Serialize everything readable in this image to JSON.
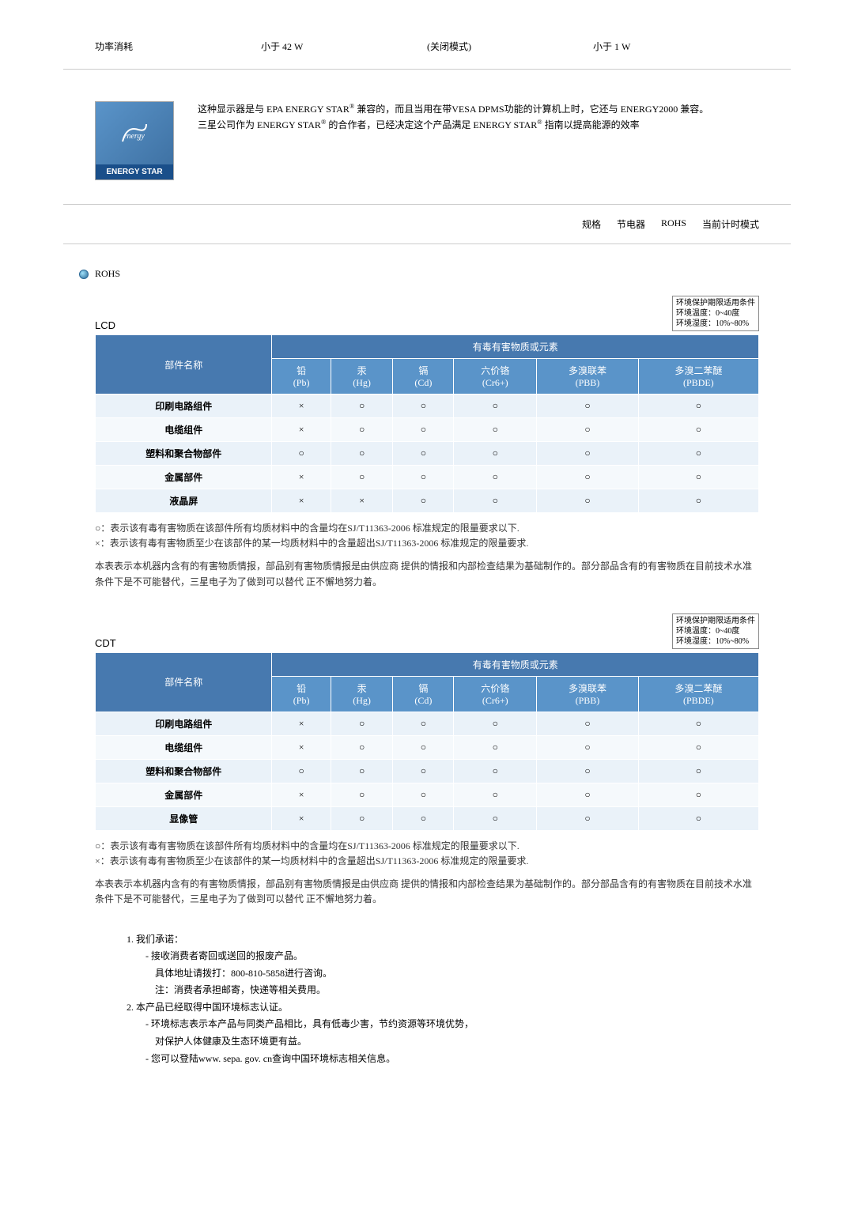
{
  "power": {
    "label": "功率消耗",
    "val1": "小于 42 W",
    "val2": "(关闭模式)",
    "val3": "小于 1 W"
  },
  "energy": {
    "logo_text": "ENERGY STAR",
    "line1": "这种显示器是与 EPA ENERGY STAR",
    "line1b": " 兼容的，而且当用在带VESA DPMS功能的计算机上时，它还与 ENERGY2000 兼容。",
    "line2": "三星公司作为 ENERGY STAR",
    "line2b": " 的合作者，已经决定这个产品满足 ENERGY STAR",
    "line2c": " 指南以提高能源的效率"
  },
  "nav": {
    "a": "规格",
    "b": "节电器",
    "c": "ROHS",
    "d": "当前计时模式"
  },
  "rohs_title": "ROHS",
  "env": {
    "l1": "环境保护期限适用条件",
    "l2": "环境温度：0~40度",
    "l3": "环境湿度：10%~80%"
  },
  "lcd": {
    "title": "LCD",
    "hdr_part": "部件名称",
    "hdr_group": "有毒有害物质或元素",
    "cols": {
      "pb": "铅",
      "pb2": "(Pb)",
      "hg": "汞",
      "hg2": "(Hg)",
      "cd": "镉",
      "cd2": "(Cd)",
      "cr": "六价铬",
      "cr2": "(Cr6+)",
      "pbb": "多溴联苯",
      "pbb2": "(PBB)",
      "pbde": "多溴二苯醚",
      "pbde2": "(PBDE)"
    },
    "rows": [
      {
        "name": "印刷电路组件",
        "v": [
          "×",
          "○",
          "○",
          "○",
          "○",
          "○"
        ]
      },
      {
        "name": "电缆组件",
        "v": [
          "×",
          "○",
          "○",
          "○",
          "○",
          "○"
        ]
      },
      {
        "name": "塑料和聚合物部件",
        "v": [
          "○",
          "○",
          "○",
          "○",
          "○",
          "○"
        ]
      },
      {
        "name": "金属部件",
        "v": [
          "×",
          "○",
          "○",
          "○",
          "○",
          "○"
        ]
      },
      {
        "name": "液晶屏",
        "v": [
          "×",
          "×",
          "○",
          "○",
          "○",
          "○"
        ]
      }
    ]
  },
  "cdt": {
    "title": "CDT",
    "rows": [
      {
        "name": "印刷电路组件",
        "v": [
          "×",
          "○",
          "○",
          "○",
          "○",
          "○"
        ]
      },
      {
        "name": "电缆组件",
        "v": [
          "×",
          "○",
          "○",
          "○",
          "○",
          "○"
        ]
      },
      {
        "name": "塑料和聚合物部件",
        "v": [
          "○",
          "○",
          "○",
          "○",
          "○",
          "○"
        ]
      },
      {
        "name": "金属部件",
        "v": [
          "×",
          "○",
          "○",
          "○",
          "○",
          "○"
        ]
      },
      {
        "name": "显像管",
        "v": [
          "×",
          "○",
          "○",
          "○",
          "○",
          "○"
        ]
      }
    ]
  },
  "notes": {
    "n1": "○：表示该有毒有害物质在该部件所有均质材料中的含量均在SJ/T11363-2006 标准规定的限量要求以下.",
    "n2": "×：表示该有毒有害物质至少在该部件的某一均质材料中的含量超出SJ/T11363-2006 标准规定的限量要求.",
    "n3": "本表表示本机器内含有的有害物质情报，部品别有害物质情报是由供应商 提供的情报和内部检查结果为基础制作的。部分部品含有的有害物质在目前技术水准条件下是不可能替代，三星电子为了做到可以替代 正不懈地努力着。",
    "n3b": "本表表示本机器内含有的有害物质情报，部品别有害物质情报是由供应商 提供的情报和内部检查结果为基础制作的。部分部品含有的有害物质在目前技术水准条件下是不可能替代，三星电子为了做到可以替代 正不懈地努力着。"
  },
  "commit": {
    "l1": "1. 我们承诺：",
    "l2": "- 接收消费者寄回或送回的报废产品。",
    "l3": "具体地址请拨打：800-810-5858进行咨询。",
    "l4": "注：消费者承担邮寄，快递等相关费用。",
    "l5": "2. 本产品已经取得中国环境标志认证。",
    "l6": "- 环境标志表示本产品与同类产品相比，具有低毒少害，节约资源等环境优势，",
    "l7": "对保护人体健康及生态环境更有益。",
    "l8": "- 您可以登陆www. sepa. gov. cn查询中国环境标志相关信息。"
  }
}
